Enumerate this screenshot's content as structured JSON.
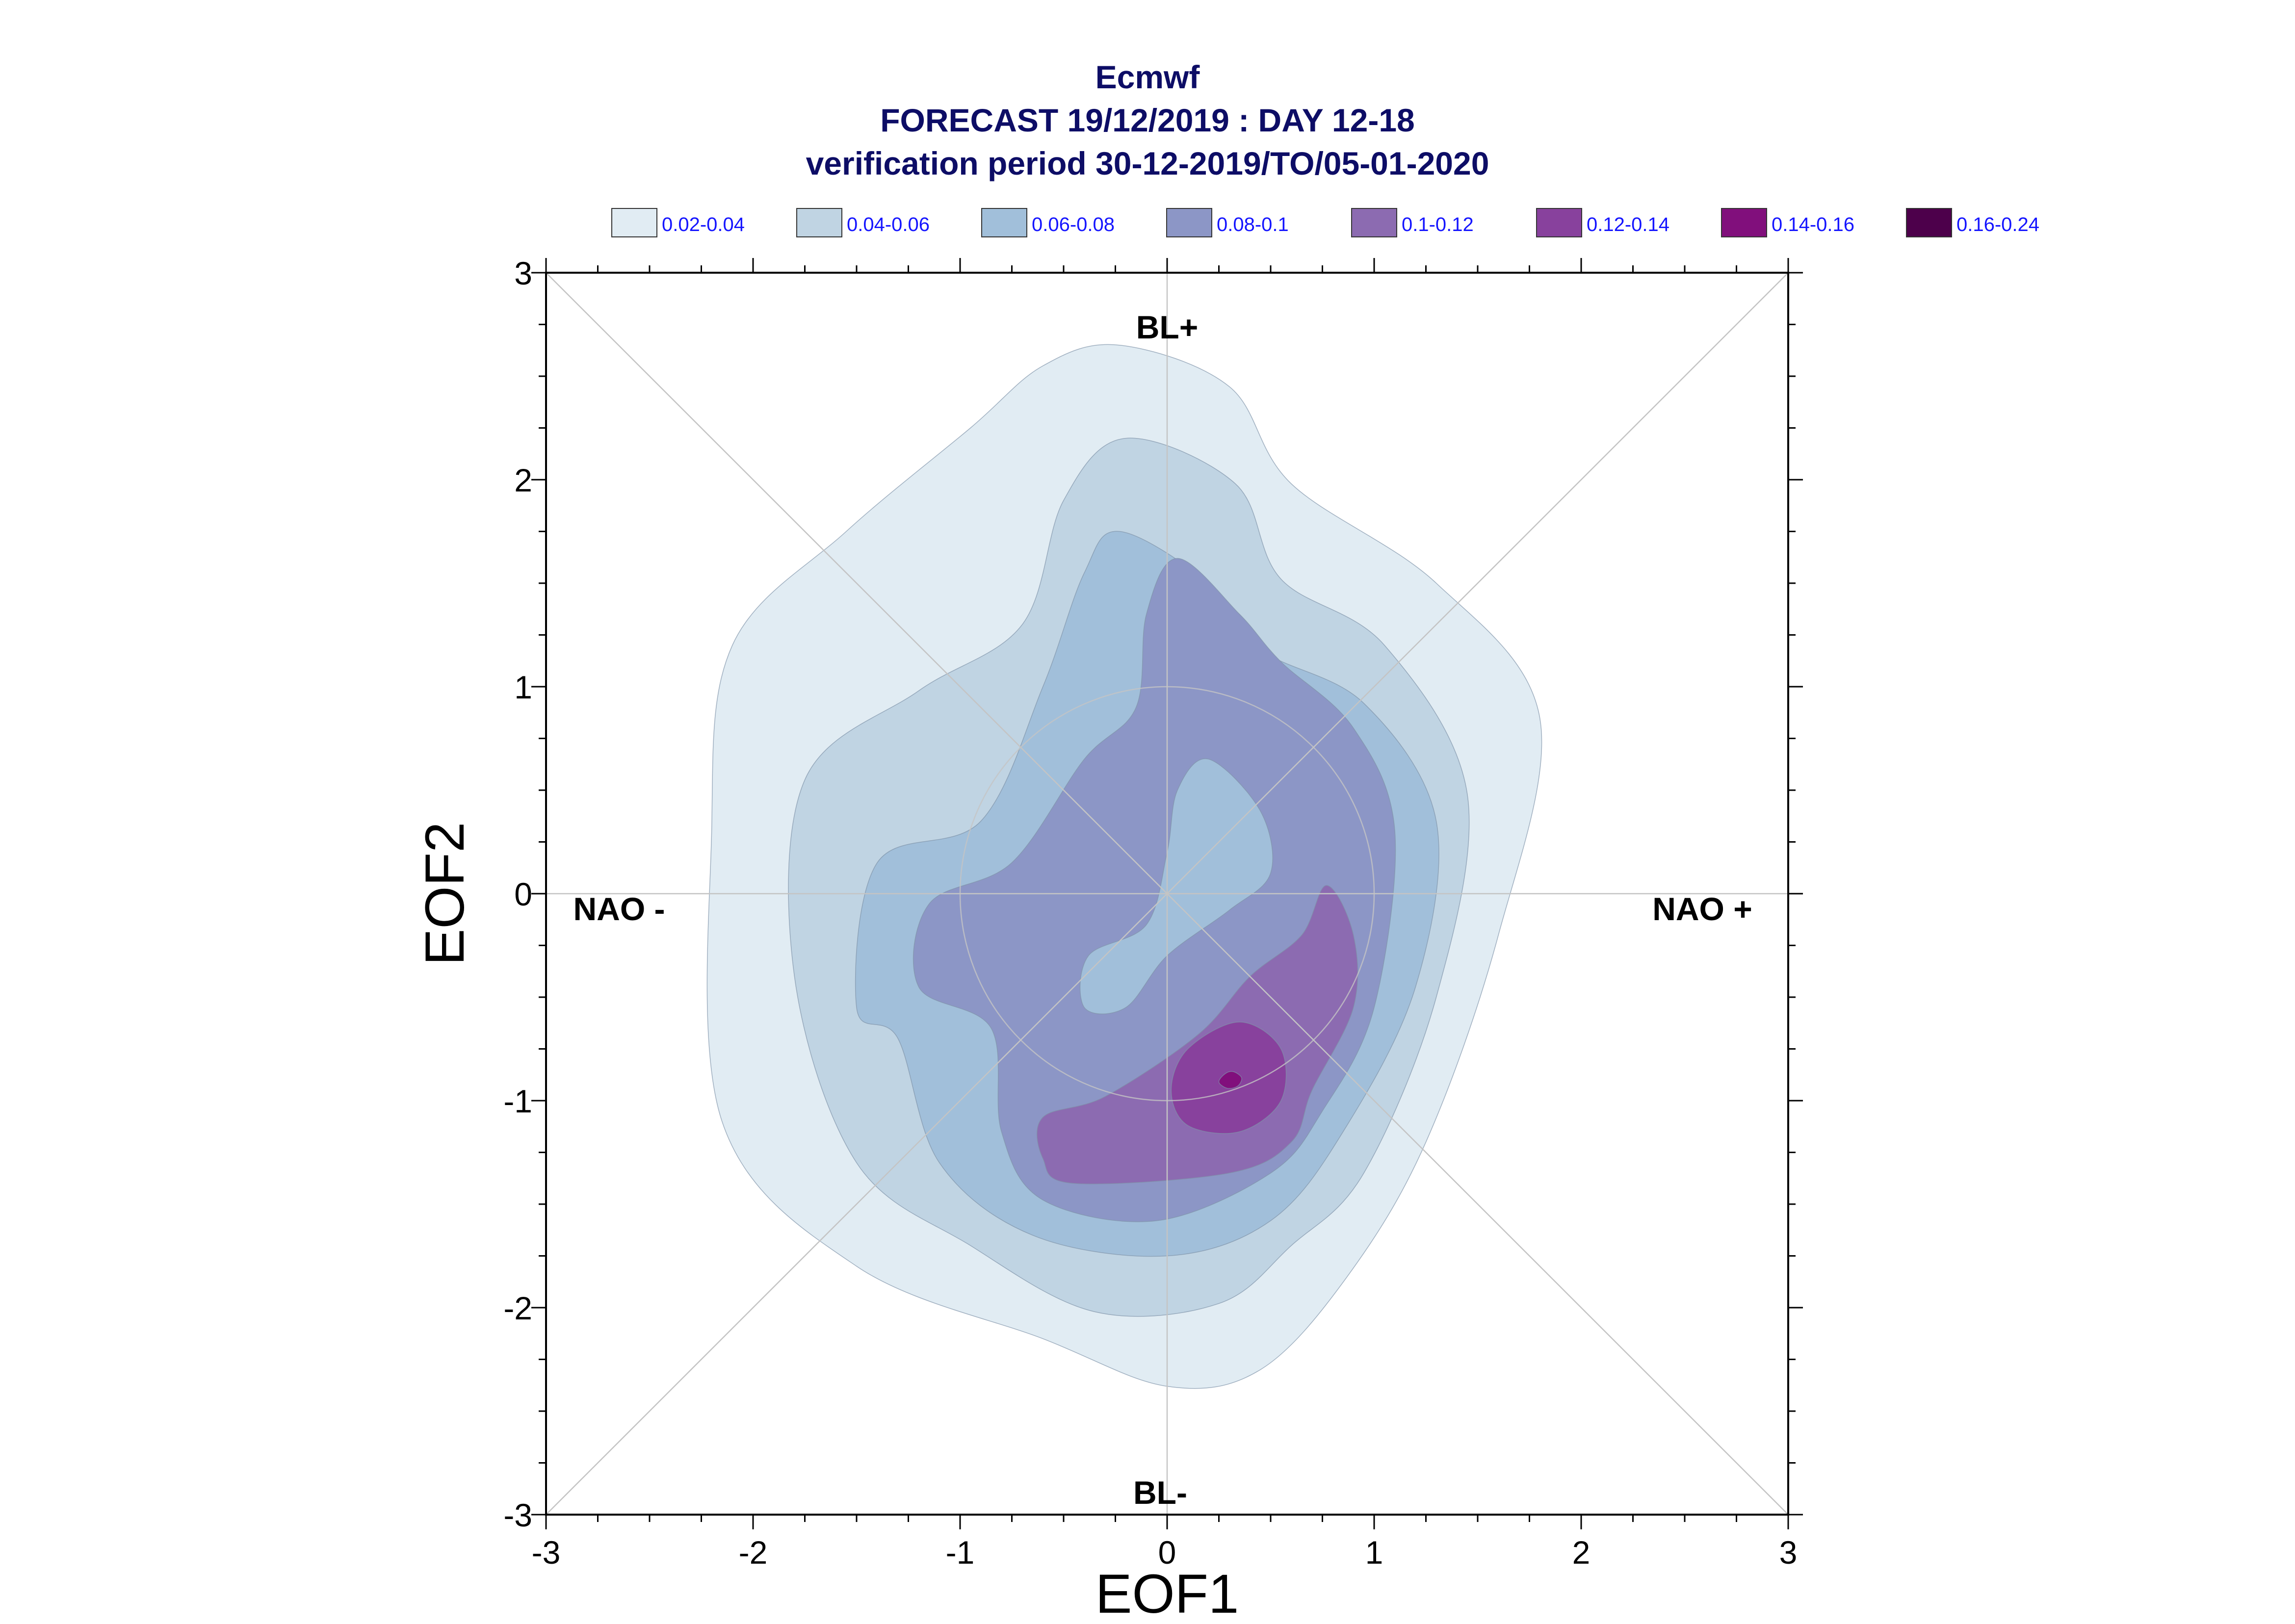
{
  "chart_data": {
    "type": "contour",
    "title": [
      "Ecmwf",
      "FORECAST 19/12/2019 : DAY 12-18",
      "verification period 30-12-2019/TO/05-01-2020"
    ],
    "xlabel": "EOF1",
    "ylabel": "EOF2",
    "xlim": [
      -3,
      3
    ],
    "ylim": [
      -3,
      3
    ],
    "x_ticks": [
      "-3",
      "-2",
      "-1",
      "0",
      "1",
      "2",
      "3"
    ],
    "y_ticks": [
      "-3",
      "-2",
      "-1",
      "0",
      "1",
      "2",
      "3"
    ],
    "grid": "diagonals, axes through origin and unit circle",
    "legend_position": "top",
    "legend": [
      {
        "label": "0.02-0.04",
        "color": "#e1ecf3"
      },
      {
        "label": "0.04-0.06",
        "color": "#c0d4e3"
      },
      {
        "label": "0.06-0.08",
        "color": "#a1bfda"
      },
      {
        "label": "0.08-0.1",
        "color": "#8c96c6"
      },
      {
        "label": "0.1-0.12",
        "color": "#8c6bb1"
      },
      {
        "label": "0.12-0.14",
        "color": "#88419d"
      },
      {
        "label": "0.14-0.16",
        "color": "#810f7c"
      },
      {
        "label": "0.16-0.24",
        "color": "#4d004b"
      }
    ],
    "regime_labels": [
      "BL+",
      "BL-",
      "NAO -",
      "NAO +"
    ],
    "contours": [
      {
        "level": "0.02-0.04",
        "color": "#e1ecf3",
        "points": [
          [
            -0.23,
            2.65
          ],
          [
            0.3,
            2.45
          ],
          [
            0.6,
            1.98
          ],
          [
            1.3,
            1.5
          ],
          [
            1.8,
            0.85
          ],
          [
            1.6,
            -0.2
          ],
          [
            1.25,
            -1.2
          ],
          [
            0.87,
            -1.85
          ],
          [
            0.45,
            -2.3
          ],
          [
            0.0,
            -2.38
          ],
          [
            -0.6,
            -2.15
          ],
          [
            -1.5,
            -1.8
          ],
          [
            -2.15,
            -1.1
          ],
          [
            -2.2,
            0.3
          ],
          [
            -2.1,
            1.2
          ],
          [
            -1.55,
            1.75
          ],
          [
            -0.95,
            2.25
          ],
          [
            -0.6,
            2.55
          ]
        ]
      },
      {
        "level": "0.04-0.06",
        "color": "#c0d4e3",
        "points": [
          [
            -0.2,
            2.2
          ],
          [
            0.33,
            1.98
          ],
          [
            0.55,
            1.52
          ],
          [
            1.05,
            1.2
          ],
          [
            1.45,
            0.48
          ],
          [
            1.3,
            -0.5
          ],
          [
            0.95,
            -1.35
          ],
          [
            0.6,
            -1.7
          ],
          [
            0.25,
            -1.98
          ],
          [
            -0.35,
            -2.02
          ],
          [
            -0.95,
            -1.7
          ],
          [
            -1.5,
            -1.3
          ],
          [
            -1.8,
            -0.4
          ],
          [
            -1.75,
            0.55
          ],
          [
            -1.2,
            0.98
          ],
          [
            -0.7,
            1.3
          ],
          [
            -0.5,
            1.9
          ]
        ]
      },
      {
        "level": "0.06-0.08",
        "color": "#a1bfda",
        "points": [
          [
            -0.23,
            1.75
          ],
          [
            0.2,
            1.5
          ],
          [
            0.45,
            1.18
          ],
          [
            0.95,
            0.92
          ],
          [
            1.3,
            0.35
          ],
          [
            1.2,
            -0.45
          ],
          [
            0.85,
            -1.15
          ],
          [
            0.5,
            -1.58
          ],
          [
            0.0,
            -1.75
          ],
          [
            -0.65,
            -1.65
          ],
          [
            -1.1,
            -1.3
          ],
          [
            -1.3,
            -0.7
          ],
          [
            -1.5,
            -0.55
          ],
          [
            -1.4,
            0.15
          ],
          [
            -0.9,
            0.35
          ],
          [
            -0.6,
            1.0
          ],
          [
            -0.4,
            1.55
          ]
        ]
      },
      {
        "level": "0.08-0.1",
        "color": "#8c96c6",
        "points": [
          [
            0.05,
            1.62
          ],
          [
            0.35,
            1.35
          ],
          [
            0.55,
            1.12
          ],
          [
            0.9,
            0.8
          ],
          [
            1.1,
            0.3
          ],
          [
            1.0,
            -0.55
          ],
          [
            0.75,
            -1.05
          ],
          [
            0.5,
            -1.35
          ],
          [
            -0.05,
            -1.58
          ],
          [
            -0.6,
            -1.48
          ],
          [
            -0.8,
            -1.15
          ],
          [
            -0.85,
            -0.65
          ],
          [
            -1.2,
            -0.45
          ],
          [
            -1.15,
            -0.05
          ],
          [
            -0.75,
            0.15
          ],
          [
            -0.4,
            0.65
          ],
          [
            -0.15,
            0.9
          ],
          [
            -0.1,
            1.35
          ]
        ]
      },
      {
        "level": "0.1-0.12",
        "color": "#8c6bb1",
        "points": [
          [
            0.77,
            0.04
          ],
          [
            0.9,
            -0.2
          ],
          [
            0.9,
            -0.55
          ],
          [
            0.7,
            -0.95
          ],
          [
            0.6,
            -1.2
          ],
          [
            0.3,
            -1.35
          ],
          [
            -0.45,
            -1.4
          ],
          [
            -0.6,
            -1.28
          ],
          [
            -0.6,
            -1.08
          ],
          [
            -0.3,
            -0.98
          ],
          [
            0.15,
            -0.68
          ],
          [
            0.4,
            -0.4
          ],
          [
            0.65,
            -0.2
          ]
        ]
      },
      {
        "level": "0.12-0.14",
        "color": "#88419d",
        "points": [
          [
            0.35,
            -0.62
          ],
          [
            0.55,
            -0.75
          ],
          [
            0.55,
            -1.0
          ],
          [
            0.35,
            -1.15
          ],
          [
            0.1,
            -1.12
          ],
          [
            0.02,
            -0.95
          ],
          [
            0.1,
            -0.75
          ]
        ]
      },
      {
        "level": "0.14-0.16",
        "color": "#810f7c",
        "points": [
          [
            0.32,
            -0.86
          ],
          [
            0.36,
            -0.89
          ],
          [
            0.34,
            -0.93
          ],
          [
            0.29,
            -0.94
          ],
          [
            0.25,
            -0.91
          ],
          [
            0.28,
            -0.87
          ]
        ]
      }
    ],
    "holes": [
      {
        "inside_level": "0.08-0.1",
        "fill_level": "0.06-0.08",
        "color": "#a1bfda",
        "points": [
          [
            0.2,
            0.65
          ],
          [
            0.45,
            0.4
          ],
          [
            0.5,
            0.1
          ],
          [
            0.3,
            -0.08
          ],
          [
            0.0,
            -0.3
          ],
          [
            -0.2,
            -0.55
          ],
          [
            -0.4,
            -0.55
          ],
          [
            -0.38,
            -0.3
          ],
          [
            -0.1,
            -0.15
          ],
          [
            0.0,
            0.2
          ],
          [
            0.05,
            0.5
          ]
        ]
      }
    ]
  }
}
